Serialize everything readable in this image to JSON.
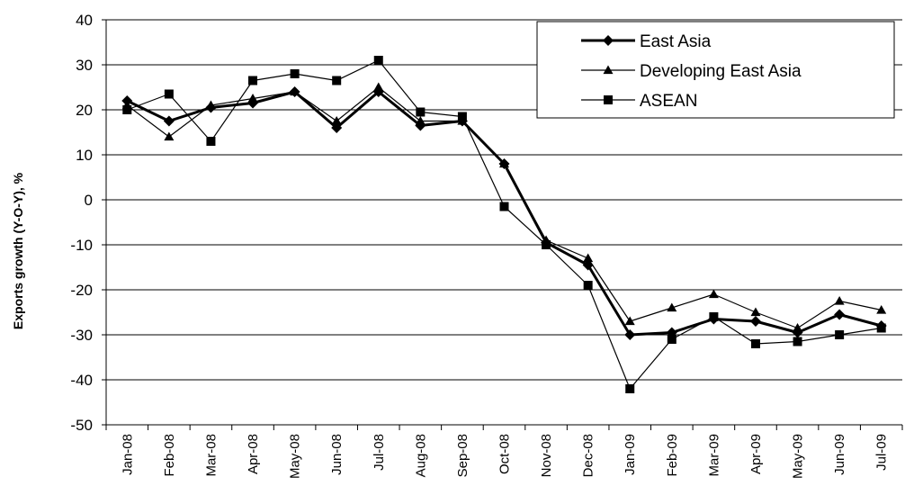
{
  "chart_data": {
    "type": "line",
    "ylabel": "Exports growth (Y-O-Y), %",
    "xlabel": "",
    "ylim": [
      -50,
      40
    ],
    "yticks": [
      -50,
      -40,
      -30,
      -20,
      -10,
      0,
      10,
      20,
      30,
      40
    ],
    "grid": "horizontal",
    "legend_position": "top-right",
    "categories": [
      "Jan-08",
      "Feb-08",
      "Mar-08",
      "Apr-08",
      "May-08",
      "Jun-08",
      "Jul-08",
      "Aug-08",
      "Sep-08",
      "Oct-08",
      "Nov-08",
      "Dec-08",
      "Jan-09",
      "Feb-09",
      "Mar-09",
      "Apr-09",
      "May-09",
      "Jun-09",
      "Jul-09"
    ],
    "series": [
      {
        "name": "East Asia",
        "marker": "diamond",
        "line_width": 3,
        "values": [
          22,
          17.5,
          20.5,
          21.5,
          24,
          16,
          24,
          16.5,
          17.5,
          8,
          -9.5,
          -14.5,
          -30,
          -29.5,
          -26.5,
          -27,
          -29.5,
          -25.5,
          -28
        ]
      },
      {
        "name": "Developing East Asia",
        "marker": "triangle",
        "line_width": 1.2,
        "values": [
          21,
          14,
          21,
          22.5,
          24,
          17.5,
          25,
          17.5,
          17.5,
          8,
          -9,
          -13,
          -27,
          -24,
          -21,
          -25,
          -28.5,
          -22.5,
          -24.5
        ]
      },
      {
        "name": "ASEAN",
        "marker": "square",
        "line_width": 1.2,
        "values": [
          20,
          23.5,
          13,
          26.5,
          28,
          26.5,
          31,
          19.5,
          18.5,
          -1.5,
          -10,
          -19,
          -42,
          -31,
          -26,
          -32,
          -31.5,
          -30,
          -28.5
        ]
      }
    ]
  }
}
